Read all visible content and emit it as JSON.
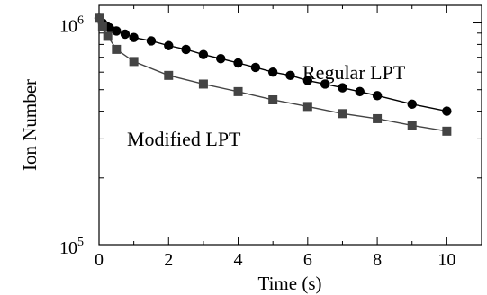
{
  "chart_data": {
    "type": "scatter",
    "title": "",
    "xlabel": "Time (s)",
    "ylabel": "Ion Number",
    "xlim": [
      0,
      11
    ],
    "ylim": [
      100000,
      1200000
    ],
    "y_scale": "log",
    "grid": false,
    "x_ticks": [
      0,
      2,
      4,
      6,
      8,
      10
    ],
    "x_tick_labels": [
      "0",
      "2",
      "4",
      "6",
      "8",
      "10"
    ],
    "y_major_ticks": [
      {
        "value": 100000,
        "base": "10",
        "exp": "5"
      },
      {
        "value": 1000000,
        "base": "10",
        "exp": "6"
      }
    ],
    "series": [
      {
        "name": "Regular LPT",
        "marker": "circle",
        "color": "#000000",
        "x": [
          0,
          0.1,
          0.2,
          0.3,
          0.5,
          0.75,
          1,
          1.5,
          2,
          2.5,
          3,
          3.5,
          4,
          4.5,
          5,
          5.5,
          6,
          6.5,
          7,
          7.5,
          8,
          9,
          10
        ],
        "y": [
          1050000,
          1000000,
          970000,
          950000,
          920000,
          890000,
          860000,
          830000,
          790000,
          760000,
          720000,
          690000,
          660000,
          630000,
          600000,
          580000,
          550000,
          530000,
          510000,
          490000,
          470000,
          430000,
          400000
        ]
      },
      {
        "name": "Modified LPT",
        "marker": "square",
        "color": "#444444",
        "x": [
          0,
          0.1,
          0.25,
          0.5,
          1,
          2,
          3,
          4,
          5,
          6,
          7,
          8,
          9,
          10
        ],
        "y": [
          1050000,
          960000,
          870000,
          760000,
          670000,
          580000,
          530000,
          490000,
          450000,
          420000,
          390000,
          370000,
          345000,
          325000
        ]
      }
    ]
  }
}
